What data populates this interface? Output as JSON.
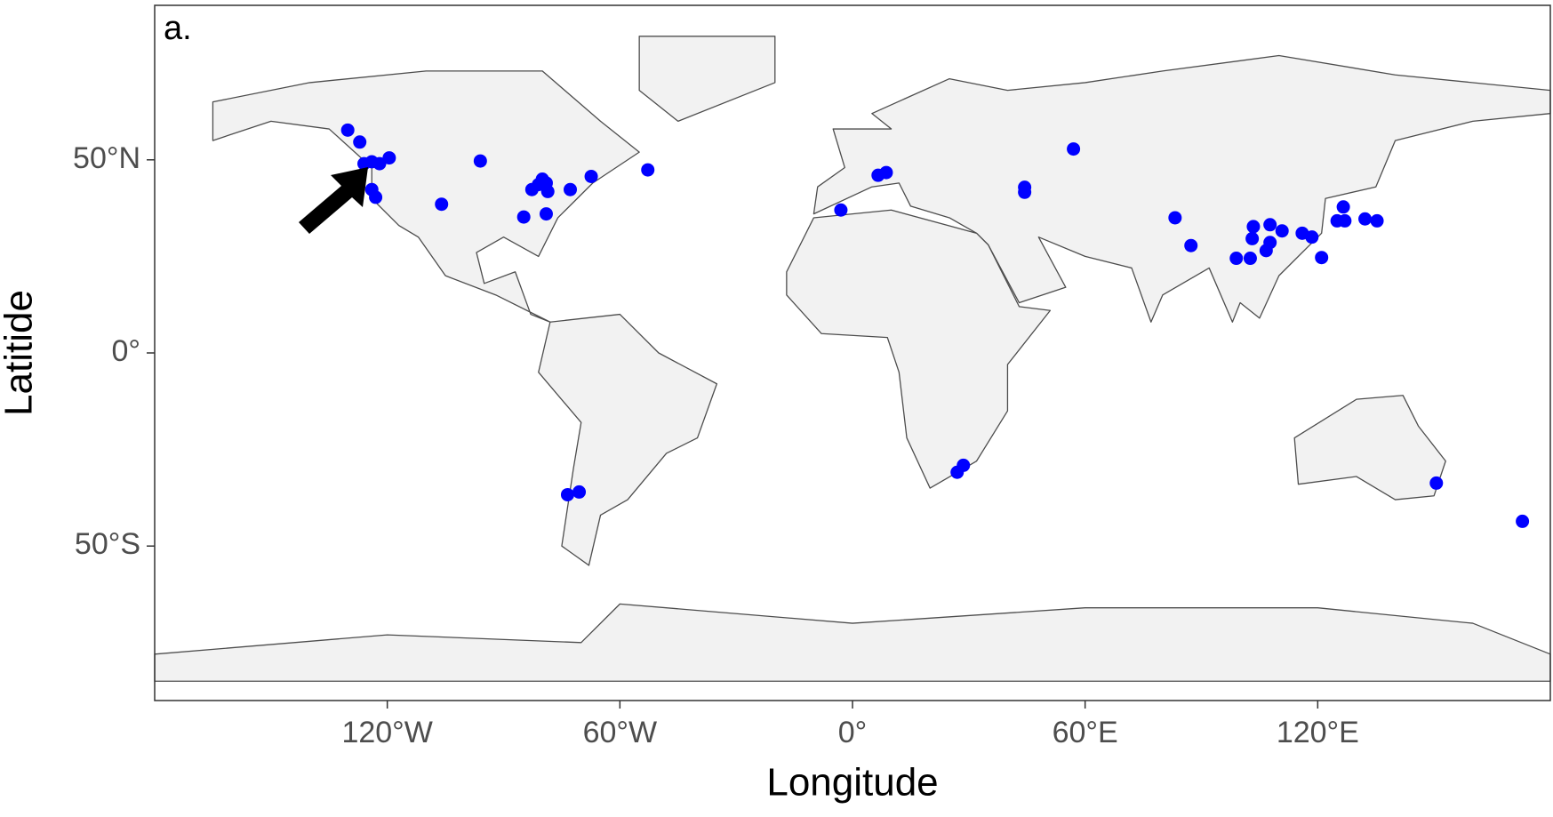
{
  "chart_data": {
    "type": "scatter",
    "panel_label": "a.",
    "x_label": "Longitude",
    "y_label": "Latitide",
    "xlim": [
      -180,
      180
    ],
    "ylim": [
      -90,
      90
    ],
    "xticks": [
      {
        "value": -120,
        "label": "120°W"
      },
      {
        "value": -60,
        "label": "60°W"
      },
      {
        "value": 0,
        "label": "0°"
      },
      {
        "value": 60,
        "label": "60°E"
      },
      {
        "value": 120,
        "label": "120°E"
      }
    ],
    "yticks": [
      {
        "value": -50,
        "label": "50°S"
      },
      {
        "value": 0,
        "label": "0°"
      },
      {
        "value": 50,
        "label": "50°N"
      }
    ],
    "series": [
      {
        "color": "#0000ff",
        "x": [
          -130.2,
          -127.1,
          -126,
          -124,
          -122,
          -119.5,
          -124,
          -123,
          -106,
          -96,
          -84.8,
          -82.7,
          -81,
          -80,
          -79,
          -78.6,
          -79,
          -72.8,
          -67.4,
          -52.8,
          -73.5,
          -70.5,
          -3,
          6.6,
          8.7,
          57,
          44.4,
          44.4,
          83.2,
          87.3,
          103.4,
          107.7,
          110.8,
          103.1,
          107.7,
          106.7,
          99,
          102.6,
          116,
          118.5,
          121,
          126.6,
          125,
          127,
          132.2,
          135.3,
          27,
          28.6,
          150.6,
          172.8
        ],
        "y": [
          57.7,
          54.6,
          49,
          49.5,
          49,
          50.5,
          42.3,
          40.3,
          38.5,
          49.7,
          35.2,
          42.3,
          43.6,
          45,
          44,
          41.8,
          36,
          42.3,
          45.7,
          47.4,
          -36.7,
          -36,
          37,
          46,
          46.7,
          52.8,
          42.9,
          41.6,
          35,
          27.8,
          32.7,
          33.2,
          31.6,
          29.6,
          28.6,
          26.5,
          24.5,
          24.5,
          31,
          30,
          24.7,
          37.8,
          34.2,
          34.2,
          34.7,
          34.2,
          -30.9,
          -29.1,
          -33.7,
          -43.6
        ]
      }
    ]
  }
}
